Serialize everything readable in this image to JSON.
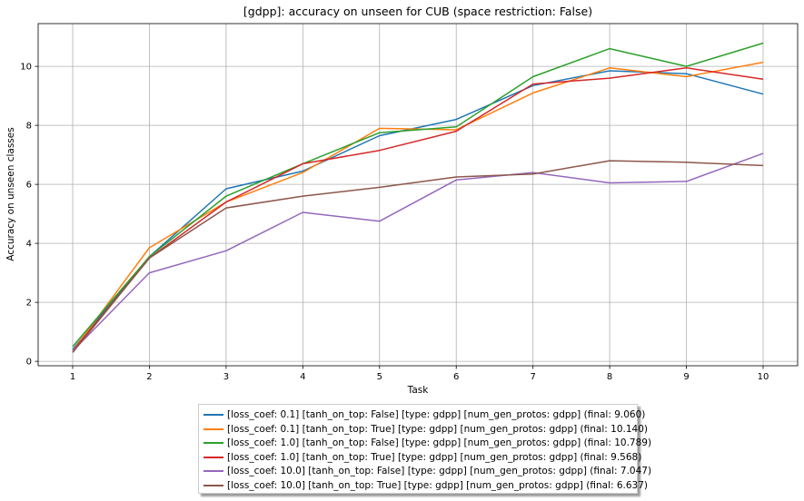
{
  "chart_data": {
    "type": "line",
    "title": "[gdpp]: accuracy on unseen for CUB (space restriction: False)",
    "xlabel": "Task",
    "ylabel": "Accuracy on unseen classes",
    "x": [
      1,
      2,
      3,
      4,
      5,
      6,
      7,
      8,
      9,
      10
    ],
    "xlim": [
      0.55,
      10.45
    ],
    "ylim": [
      -0.15,
      11.45
    ],
    "yticks": [
      0,
      2,
      4,
      6,
      8,
      10
    ],
    "grid": true,
    "legend_position": "lower center, outside plot",
    "series": [
      {
        "name": "[loss_coef: 0.1] [tanh_on_top: False] [type: gdpp] [num_gen_protos: gdpp] (final:  9.060)",
        "color": "#1f77b4",
        "values": [
          0.4,
          3.55,
          5.85,
          6.45,
          7.65,
          8.2,
          9.35,
          9.85,
          9.75,
          9.06
        ]
      },
      {
        "name": "[loss_coef: 0.1] [tanh_on_top: True] [type: gdpp] [num_gen_protos: gdpp] (final:  10.140)",
        "color": "#ff7f0e",
        "values": [
          0.35,
          3.85,
          5.4,
          6.4,
          7.9,
          7.85,
          9.1,
          9.95,
          9.65,
          10.14
        ]
      },
      {
        "name": "[loss_coef: 1.0] [tanh_on_top: False] [type: gdpp] [num_gen_protos: gdpp] (final:  10.789)",
        "color": "#2ca02c",
        "values": [
          0.5,
          3.55,
          5.6,
          6.7,
          7.75,
          7.95,
          9.65,
          10.6,
          10.0,
          10.789
        ]
      },
      {
        "name": "[loss_coef: 1.0] [tanh_on_top: True] [type: gdpp] [num_gen_protos: gdpp] (final:  9.568)",
        "color": "#d62728",
        "values": [
          0.35,
          3.5,
          5.4,
          6.7,
          7.15,
          7.8,
          9.4,
          9.6,
          9.95,
          9.568
        ]
      },
      {
        "name": "[loss_coef: 10.0] [tanh_on_top: False] [type: gdpp] [num_gen_protos: gdpp] (final:  7.047)",
        "color": "#9467bd",
        "values": [
          0.35,
          3.0,
          3.75,
          5.05,
          4.75,
          6.15,
          6.4,
          6.05,
          6.1,
          7.047
        ]
      },
      {
        "name": "[loss_coef: 10.0] [tanh_on_top: True] [type: gdpp] [num_gen_protos: gdpp] (final:  6.637)",
        "color": "#8c564b",
        "values": [
          0.3,
          3.5,
          5.2,
          5.6,
          5.9,
          6.25,
          6.35,
          6.8,
          6.75,
          6.637
        ]
      }
    ]
  }
}
